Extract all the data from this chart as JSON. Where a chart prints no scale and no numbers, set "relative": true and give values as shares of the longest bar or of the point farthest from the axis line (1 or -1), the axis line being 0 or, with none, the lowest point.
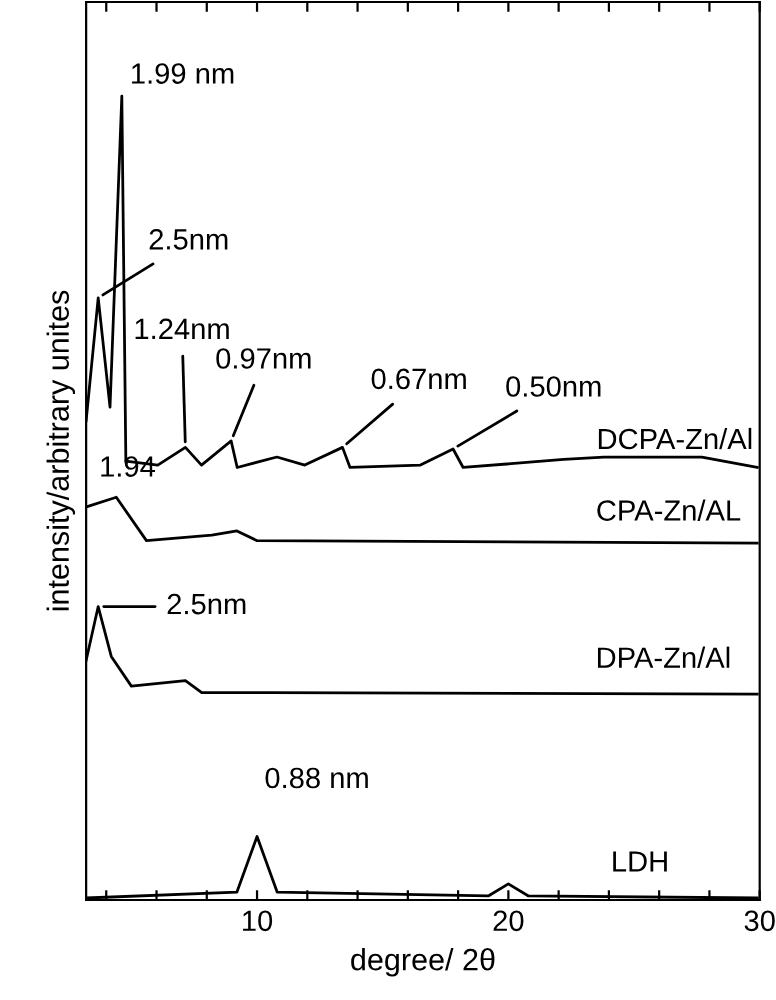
{
  "chart_data": {
    "type": "line",
    "relative": true,
    "xlabel": "degree/ 2θ",
    "ylabel": "intensity/arbitrary unites",
    "xlim": [
      3.2,
      30
    ],
    "xticks": [
      {
        "value": 4,
        "label": null
      },
      {
        "value": 6,
        "label": null
      },
      {
        "value": 8,
        "label": null
      },
      10,
      {
        "value": 12,
        "label": null
      },
      {
        "value": 14,
        "label": null
      },
      {
        "value": 16,
        "label": null
      },
      {
        "value": 18,
        "label": null
      },
      20,
      {
        "value": 22,
        "label": null
      },
      {
        "value": 24,
        "label": null
      },
      {
        "value": 26,
        "label": null
      },
      {
        "value": 28,
        "label": null
      },
      30
    ],
    "tick_labels": "x",
    "grid": false,
    "legend": false,
    "marker": "none",
    "line_style": "solid",
    "series": [
      {
        "name": "DCPA-Zn/Al",
        "color": "#000000",
        "x": [
          3.2,
          3.68,
          4.15,
          4.62,
          4.78,
          6.05,
          7.15,
          7.79,
          8.97,
          9.21,
          10.79,
          11.9,
          13.4,
          13.7,
          16.5,
          17.8,
          18.2,
          22.2,
          23.8,
          27.7,
          29.9
        ],
        "values": [
          0.596,
          0.749,
          0.613,
          1.0,
          0.546,
          0.541,
          0.563,
          0.541,
          0.571,
          0.538,
          0.551,
          0.541,
          0.563,
          0.538,
          0.541,
          0.561,
          0.538,
          0.548,
          0.551,
          0.551,
          0.538
        ]
      },
      {
        "name": "CPA-Zn/AL",
        "color": "#000000",
        "x": [
          3.2,
          4.4,
          5.6,
          8.2,
          9.2,
          10.0,
          29.9
        ],
        "values": [
          0.489,
          0.501,
          0.447,
          0.454,
          0.459,
          0.447,
          0.444
        ]
      },
      {
        "name": "DPA-Zn/Al",
        "color": "#000000",
        "x": [
          3.2,
          3.68,
          4.2,
          5.0,
          7.15,
          7.8,
          10.5,
          29.9
        ],
        "values": [
          0.298,
          0.365,
          0.303,
          0.266,
          0.273,
          0.258,
          0.258,
          0.256
        ]
      },
      {
        "name": "LDH",
        "color": "#000000",
        "x": [
          3.2,
          9.2,
          10.0,
          10.8,
          19.2,
          20.0,
          20.8,
          29.9
        ],
        "values": [
          0.0025,
          0.0099,
          0.079,
          0.0099,
          0.005,
          0.02,
          0.005,
          0.0025
        ]
      }
    ],
    "annotations": [
      {
        "text": "1.99 nm",
        "x": 4.62,
        "y": 1.0
      },
      {
        "text": "2.5nm",
        "x": 3.68,
        "y": 0.749
      },
      {
        "text": "1.94",
        "x": 4.78,
        "y": 0.546
      },
      {
        "text": "1.24nm",
        "x": 7.15,
        "y": 0.563
      },
      {
        "text": "0.97nm",
        "x": 8.97,
        "y": 0.571
      },
      {
        "text": "0.67nm",
        "x": 13.4,
        "y": 0.563
      },
      {
        "text": "0.50nm",
        "x": 17.8,
        "y": 0.561
      },
      {
        "text": "2.5nm",
        "x": 3.68,
        "y": 0.365
      },
      {
        "text": "0.88 nm",
        "x": 10.0,
        "y": 0.079
      }
    ]
  }
}
